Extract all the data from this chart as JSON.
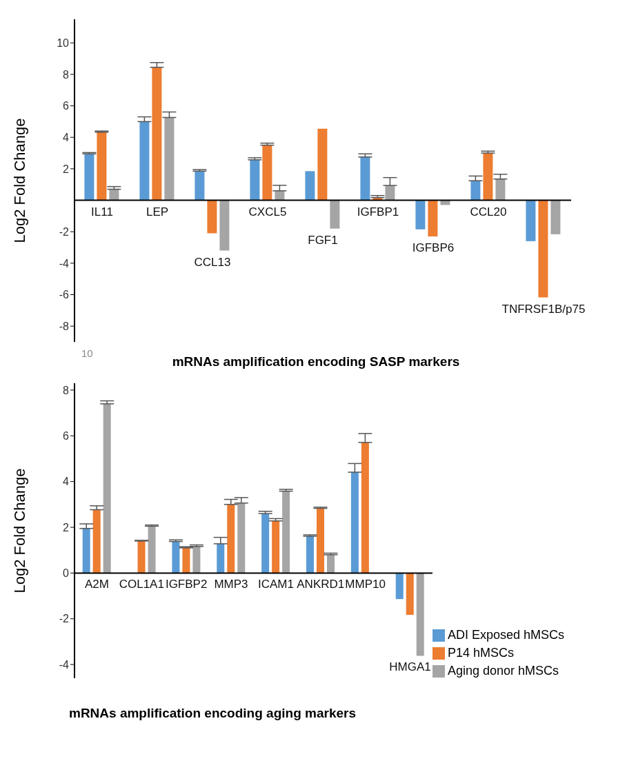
{
  "chart_data": [
    {
      "type": "bar",
      "title": "mRNAs amplification encoding SASP markers",
      "ylabel": "Log2 Fold Change",
      "categories": [
        "IL11",
        "LEP",
        "CCL13",
        "CXCL5",
        "FGF1",
        "IGFBP1",
        "IGFBP6",
        "CCL20",
        "TNFRSF1B/p75"
      ],
      "series": [
        {
          "color": "#5b9bd5",
          "values": [
            2.95,
            5.0,
            1.85,
            2.57,
            1.85,
            2.75,
            -1.85,
            1.24,
            -2.6
          ],
          "errors": [
            [
              2.95,
              3.03
            ],
            [
              5.0,
              5.3
            ],
            [
              1.85,
              1.95
            ],
            [
              2.57,
              2.7
            ],
            null,
            [
              2.75,
              2.95
            ],
            null,
            [
              1.24,
              1.54
            ],
            null
          ]
        },
        {
          "color": "#ed7d31",
          "values": [
            4.33,
            8.45,
            -2.1,
            3.5,
            4.55,
            0.17,
            -2.3,
            3.0,
            -6.18
          ],
          "errors": [
            [
              4.33,
              4.4
            ],
            [
              8.45,
              8.75
            ],
            null,
            [
              3.5,
              3.63
            ],
            null,
            [
              0.17,
              0.3
            ],
            null,
            [
              3.0,
              3.12
            ],
            null
          ]
        },
        {
          "color": "#a5a5a5",
          "values": [
            0.7,
            5.26,
            -3.2,
            0.6,
            -1.8,
            0.94,
            -0.3,
            1.35,
            -2.16
          ],
          "errors": [
            [
              0.7,
              0.87
            ],
            [
              5.26,
              5.61
            ],
            null,
            [
              0.6,
              0.95
            ],
            null,
            [
              0.94,
              1.44
            ],
            null,
            [
              1.35,
              1.65
            ],
            null
          ]
        }
      ],
      "ylim": [
        -9,
        11.5
      ],
      "yticks": [
        -8,
        -6,
        -4,
        -2,
        2,
        4,
        6,
        8,
        10
      ],
      "grid": false,
      "annotations": [
        "10"
      ]
    },
    {
      "type": "bar",
      "title": "mRNAs amplification encoding aging markers",
      "ylabel": "Log2 Fold Change",
      "categories": [
        "A2M",
        "COL1A1",
        "IGFBP2",
        "MMP3",
        "ICAM1",
        "ANKRD1",
        "MMP10",
        "HMGA1"
      ],
      "series": [
        {
          "name": "ADI Exposed hMSCs",
          "color": "#5b9bd5",
          "values": [
            1.95,
            null,
            1.38,
            1.28,
            2.6,
            1.61,
            4.41,
            -1.14
          ],
          "errors": [
            [
              1.95,
              2.15
            ],
            null,
            [
              1.38,
              1.45
            ],
            [
              1.28,
              1.56
            ],
            [
              2.6,
              2.7
            ],
            [
              1.61,
              1.67
            ],
            [
              4.41,
              4.79
            ],
            null
          ]
        },
        {
          "name": "P14 hMSCs",
          "color": "#ed7d31",
          "values": [
            2.77,
            1.4,
            1.1,
            3.0,
            2.28,
            2.83,
            5.71,
            -1.83
          ],
          "errors": [
            [
              2.77,
              2.94
            ],
            [
              1.4,
              1.43
            ],
            [
              1.1,
              1.15
            ],
            [
              3.0,
              3.22
            ],
            [
              2.28,
              2.38
            ],
            [
              2.83,
              2.88
            ],
            [
              5.71,
              6.1
            ],
            null
          ]
        },
        {
          "name": "Aging donor hMSCs",
          "color": "#a5a5a5",
          "values": [
            7.4,
            2.05,
            1.16,
            3.06,
            3.58,
            0.8,
            null,
            -3.62
          ],
          "errors": [
            [
              7.4,
              7.53
            ],
            [
              2.05,
              2.1
            ],
            [
              1.16,
              1.23
            ],
            [
              3.06,
              3.3
            ],
            [
              3.58,
              3.66
            ],
            [
              0.8,
              0.87
            ],
            null,
            null
          ]
        }
      ],
      "ylim": [
        -4.6,
        8.3
      ],
      "yticks": [
        -4,
        -2,
        0,
        2,
        4,
        6,
        8
      ],
      "grid": false,
      "legend": "bottom right"
    }
  ]
}
